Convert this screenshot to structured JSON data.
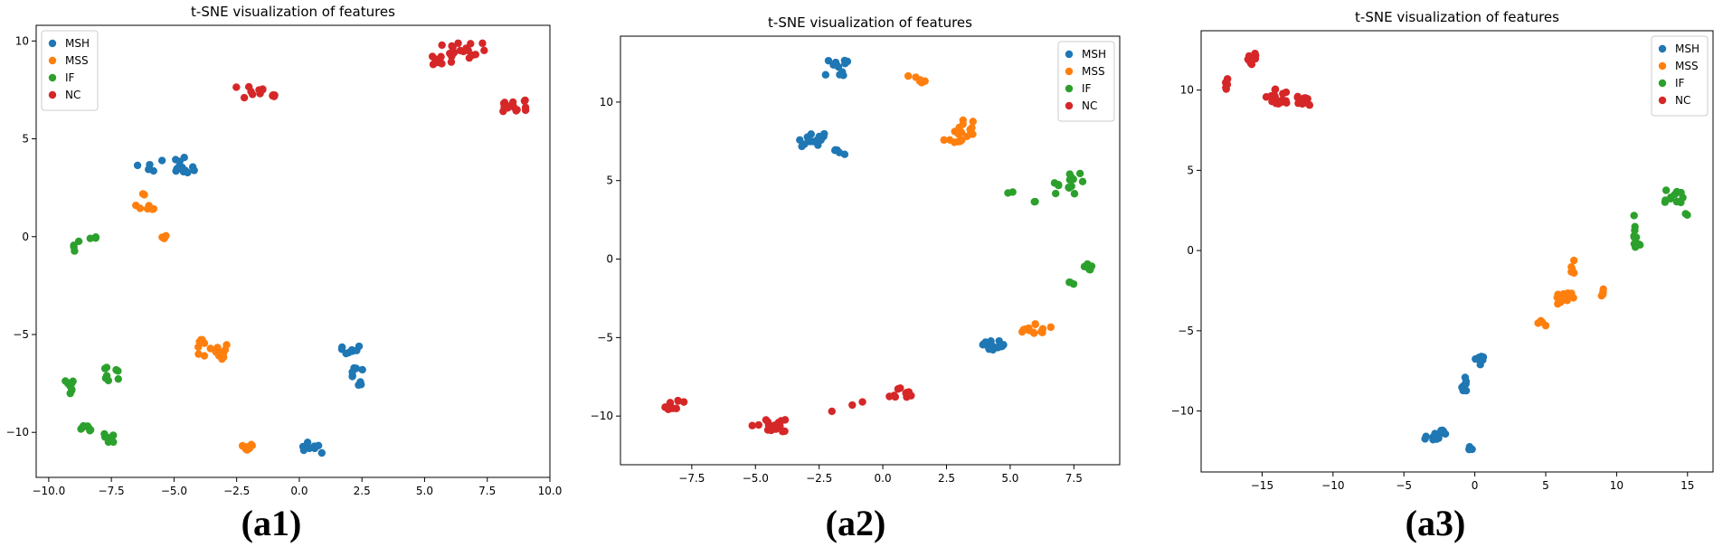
{
  "colors": {
    "MSH": "#1f77b4",
    "MSS": "#ff7f0e",
    "IF": "#2ca02c",
    "NC": "#d62728"
  },
  "chart_data": [
    {
      "type": "scatter",
      "panel": "(a1)",
      "title": "t-SNE visualization of features",
      "xlabel": "",
      "ylabel": "",
      "xlim": [
        -10.5,
        10.0
      ],
      "ylim": [
        -12.3,
        10.8
      ],
      "xticks": [
        -10.0,
        -7.5,
        -5.0,
        -2.5,
        0.0,
        2.5,
        5.0,
        7.5,
        10.0
      ],
      "xtick_labels": [
        "−10.0",
        "−7.5",
        "−5.0",
        "−2.5",
        "0.0",
        "2.5",
        "5.0",
        "7.5",
        "10.0"
      ],
      "yticks": [
        -10,
        -5,
        0,
        5,
        10
      ],
      "ytick_labels": [
        "−10",
        "−5",
        "0",
        "5",
        "10"
      ],
      "grid": false,
      "legend": "top-left",
      "series": [
        {
          "name": "MSH",
          "clusters": [
            [
              -5.4,
              3.7,
              1.2,
              0.4,
              12
            ],
            [
              -4.5,
              3.4,
              0.4,
              0.2,
              6
            ],
            [
              2.0,
              -5.8,
              0.4,
              0.2,
              8
            ],
            [
              2.4,
              -7.2,
              0.3,
              0.5,
              9
            ],
            [
              0.5,
              -10.8,
              0.4,
              0.3,
              10
            ]
          ]
        },
        {
          "name": "MSS",
          "clusters": [
            [
              -6.1,
              1.8,
              0.5,
              0.4,
              8
            ],
            [
              -5.4,
              0.0,
              0.2,
              0.2,
              3
            ],
            [
              -3.5,
              -5.8,
              0.6,
              0.6,
              18
            ],
            [
              -2.2,
              -10.8,
              0.4,
              0.2,
              10
            ]
          ]
        },
        {
          "name": "IF",
          "clusters": [
            [
              -8.9,
              -0.5,
              0.1,
              0.3,
              4
            ],
            [
              -8.3,
              0.0,
              0.2,
              0.1,
              3
            ],
            [
              -9.2,
              -7.8,
              0.2,
              0.6,
              9
            ],
            [
              -8.5,
              -9.8,
              0.3,
              0.2,
              7
            ],
            [
              -7.5,
              -7.0,
              0.3,
              0.4,
              8
            ],
            [
              -7.6,
              -10.0,
              0.2,
              0.5,
              6
            ]
          ]
        },
        {
          "name": "NC",
          "clusters": [
            [
              -1.8,
              7.4,
              0.9,
              0.3,
              14
            ],
            [
              5.5,
              9.3,
              0.2,
              0.5,
              10
            ],
            [
              6.7,
              9.4,
              0.7,
              0.5,
              18
            ],
            [
              8.6,
              6.7,
              0.5,
              0.3,
              14
            ]
          ]
        }
      ]
    },
    {
      "type": "scatter",
      "panel": "(a2)",
      "title": "t-SNE visualization of features",
      "xlabel": "",
      "ylabel": "",
      "xlim": [
        -10.3,
        9.3
      ],
      "ylim": [
        -13.1,
        14.2
      ],
      "xticks": [
        -7.5,
        -5.0,
        -2.5,
        0.0,
        2.5,
        5.0,
        7.5
      ],
      "xtick_labels": [
        "−7.5",
        "−5.0",
        "−2.5",
        "0.0",
        "2.5",
        "5.0",
        "7.5"
      ],
      "yticks": [
        -10,
        -5,
        0,
        5,
        10
      ],
      "ytick_labels": [
        "−10",
        "−5",
        "0",
        "5",
        "10"
      ],
      "grid": false,
      "legend": "top-right",
      "series": [
        {
          "name": "MSH",
          "clusters": [
            [
              -1.8,
              12.2,
              0.5,
              0.5,
              12
            ],
            [
              -2.8,
              7.5,
              0.6,
              0.5,
              14
            ],
            [
              -1.6,
              6.8,
              0.3,
              0.2,
              5
            ],
            [
              4.3,
              -5.5,
              0.6,
              0.3,
              14
            ]
          ]
        },
        {
          "name": "MSS",
          "clusters": [
            [
              1.3,
              11.4,
              0.4,
              0.3,
              6
            ],
            [
              3.2,
              8.3,
              0.4,
              0.8,
              12
            ],
            [
              2.7,
              7.5,
              0.4,
              0.1,
              6
            ],
            [
              6.0,
              -4.5,
              0.6,
              0.4,
              14
            ]
          ]
        },
        {
          "name": "IF",
          "clusters": [
            [
              7.3,
              4.7,
              0.6,
              0.8,
              14
            ],
            [
              5.0,
              4.3,
              0.1,
              0.1,
              2
            ],
            [
              6.0,
              3.6,
              0.1,
              0.1,
              2
            ],
            [
              8.1,
              -0.5,
              0.2,
              0.2,
              6
            ],
            [
              7.4,
              -1.5,
              0.1,
              0.1,
              3
            ]
          ]
        },
        {
          "name": "NC",
          "clusters": [
            [
              -8.3,
              -9.3,
              0.5,
              0.3,
              10
            ],
            [
              -4.5,
              -10.6,
              0.7,
              0.4,
              18
            ],
            [
              0.7,
              -8.5,
              0.5,
              0.3,
              10
            ]
          ]
        }
      ],
      "extra_points": {
        "NC": [
          [
            -2.0,
            -9.7
          ],
          [
            -1.2,
            -9.3
          ],
          [
            -0.8,
            -9.1
          ]
        ]
      }
    },
    {
      "type": "scatter",
      "panel": "(a3)",
      "title": "t-SNE visualization of features",
      "xlabel": "",
      "ylabel": "",
      "xlim": [
        -19.3,
        16.8
      ],
      "ylim": [
        -13.8,
        13.7
      ],
      "xticks": [
        -15,
        -10,
        -5,
        0,
        5,
        10,
        15
      ],
      "xtick_labels": [
        "−15",
        "−10",
        "−5",
        "0",
        "5",
        "10",
        "15"
      ],
      "yticks": [
        -10,
        -5,
        0,
        5,
        10
      ],
      "ytick_labels": [
        "−10",
        "−5",
        "0",
        "5",
        "10"
      ],
      "grid": false,
      "legend": "top-right",
      "series": [
        {
          "name": "MSH",
          "clusters": [
            [
              -2.8,
              -11.5,
              0.8,
              0.3,
              14
            ],
            [
              -0.8,
              -8.5,
              0.2,
              0.6,
              8
            ],
            [
              0.3,
              -6.9,
              0.3,
              0.3,
              8
            ],
            [
              -0.2,
              -12.3,
              0.2,
              0.2,
              4
            ]
          ]
        },
        {
          "name": "MSS",
          "clusters": [
            [
              4.8,
              -4.4,
              0.4,
              0.3,
              5
            ],
            [
              6.5,
              -3.0,
              0.8,
              0.5,
              14
            ],
            [
              6.9,
              -1.0,
              0.1,
              0.4,
              5
            ],
            [
              9.0,
              -2.7,
              0.1,
              0.3,
              5
            ]
          ]
        },
        {
          "name": "IF",
          "clusters": [
            [
              11.3,
              1.0,
              0.1,
              1.2,
              9
            ],
            [
              11.6,
              0.3,
              0.1,
              0.1,
              2
            ],
            [
              14.0,
              3.4,
              0.7,
              0.4,
              12
            ],
            [
              14.9,
              2.3,
              0.1,
              0.1,
              2
            ]
          ]
        },
        {
          "name": "NC",
          "clusters": [
            [
              -17.5,
              10.4,
              0.1,
              0.4,
              6
            ],
            [
              -15.8,
              12.0,
              0.4,
              0.4,
              12
            ],
            [
              -14.0,
              9.6,
              0.8,
              0.5,
              18
            ],
            [
              -12.0,
              9.3,
              0.5,
              0.4,
              10
            ]
          ]
        }
      ]
    }
  ]
}
